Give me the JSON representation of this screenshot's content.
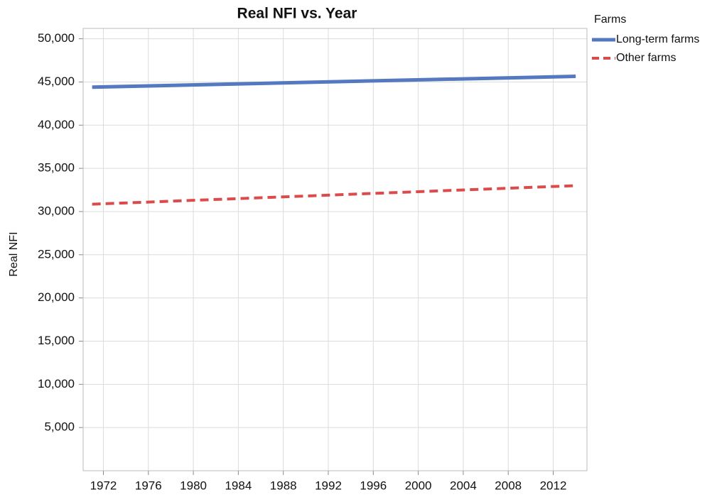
{
  "chart_data": {
    "type": "line",
    "title": "Real NFI vs. Year",
    "ylabel": "Real NFI",
    "legend_title": "Farms",
    "legend": "outside-right-top",
    "grid": true,
    "x": [
      1971,
      2014
    ],
    "series": [
      {
        "name": "Long-term farms",
        "color": "#5579c0",
        "style": "solid",
        "values": [
          44400,
          45650
        ]
      },
      {
        "name": "Other farms",
        "color": "#dc4b4b",
        "style": "dashed",
        "values": [
          30850,
          33000
        ]
      }
    ],
    "xlim": [
      1970.2,
      2015
    ],
    "xticks": [
      1972,
      1976,
      1980,
      1984,
      1988,
      1992,
      1996,
      2000,
      2004,
      2008,
      2012
    ],
    "ylim": [
      0,
      51200
    ],
    "yticks": [
      {
        "value": 5000,
        "label": "5,000"
      },
      {
        "value": 10000,
        "label": "10,000"
      },
      {
        "value": 15000,
        "label": "15,000"
      },
      {
        "value": 20000,
        "label": "20,000"
      },
      {
        "value": 25000,
        "label": "25,000"
      },
      {
        "value": 30000,
        "label": "30,000"
      },
      {
        "value": 35000,
        "label": "35,000"
      },
      {
        "value": 40000,
        "label": "40,000"
      },
      {
        "value": 45000,
        "label": "45,000"
      },
      {
        "value": 50000,
        "label": "50,000"
      }
    ]
  }
}
